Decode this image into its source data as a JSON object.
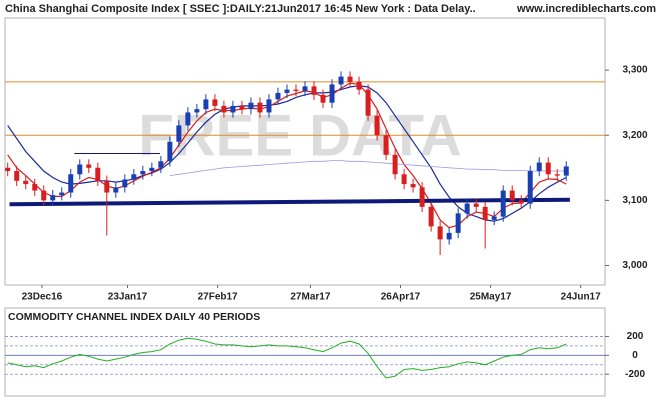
{
  "chart_data": [
    {
      "type": "candlestick",
      "title": "China Shanghai Composite Index [ SSEC ]:DAILY:21Jun2017 16:45 New York : Data Delay..",
      "source": "www.incrediblecharts.com",
      "watermark": "FREE DATA",
      "x": [
        0,
        1,
        2,
        3,
        4,
        5,
        6,
        7,
        8,
        9,
        10,
        11,
        12,
        13,
        14,
        15,
        16,
        17,
        18,
        19,
        20,
        21,
        22,
        23,
        24,
        25,
        26,
        27,
        28,
        29,
        30,
        31,
        32,
        33,
        34,
        35,
        36,
        37,
        38,
        39,
        40,
        41,
        42,
        43,
        44,
        45,
        46,
        47,
        48,
        49,
        50,
        51,
        52,
        53,
        54,
        55,
        56,
        57,
        58,
        59,
        60,
        61,
        62
      ],
      "open": [
        3150,
        3145,
        3130,
        3125,
        3115,
        3100,
        3108,
        3112,
        3140,
        3155,
        3150,
        3130,
        3112,
        3120,
        3132,
        3140,
        3145,
        3150,
        3160,
        3190,
        3215,
        3235,
        3240,
        3255,
        3245,
        3235,
        3245,
        3240,
        3250,
        3235,
        3255,
        3265,
        3270,
        3268,
        3275,
        3262,
        3250,
        3278,
        3290,
        3282,
        3270,
        3230,
        3200,
        3170,
        3140,
        3125,
        3120,
        3090,
        3060,
        3040,
        3050,
        3080,
        3095,
        3090,
        3070,
        3075,
        3115,
        3100,
        3095,
        3145,
        3158,
        3140,
        3138
      ],
      "high": [
        3158,
        3153,
        3138,
        3133,
        3123,
        3116,
        3120,
        3148,
        3163,
        3163,
        3158,
        3138,
        3128,
        3140,
        3148,
        3153,
        3158,
        3168,
        3198,
        3223,
        3243,
        3248,
        3263,
        3263,
        3253,
        3253,
        3253,
        3258,
        3258,
        3263,
        3273,
        3278,
        3278,
        3283,
        3283,
        3270,
        3286,
        3298,
        3298,
        3290,
        3278,
        3238,
        3208,
        3178,
        3148,
        3133,
        3128,
        3098,
        3068,
        3058,
        3088,
        3103,
        3103,
        3098,
        3083,
        3123,
        3123,
        3108,
        3153,
        3166,
        3166,
        3148,
        3160
      ],
      "low": [
        3137,
        3122,
        3117,
        3107,
        3092,
        3092,
        3100,
        3104,
        3132,
        3142,
        3122,
        3046,
        3104,
        3112,
        3124,
        3132,
        3137,
        3142,
        3152,
        3182,
        3207,
        3227,
        3232,
        3237,
        3227,
        3227,
        3232,
        3232,
        3227,
        3227,
        3247,
        3257,
        3260,
        3260,
        3254,
        3242,
        3242,
        3270,
        3274,
        3262,
        3222,
        3192,
        3162,
        3132,
        3117,
        3112,
        3082,
        3052,
        3016,
        3032,
        3042,
        3072,
        3082,
        3026,
        3062,
        3067,
        3092,
        3087,
        3087,
        3137,
        3132,
        3130,
        3130
      ],
      "close": [
        3145,
        3130,
        3125,
        3115,
        3100,
        3108,
        3112,
        3140,
        3155,
        3150,
        3130,
        3112,
        3120,
        3132,
        3140,
        3145,
        3150,
        3160,
        3190,
        3215,
        3235,
        3240,
        3255,
        3245,
        3235,
        3245,
        3240,
        3250,
        3235,
        3255,
        3265,
        3270,
        3268,
        3275,
        3262,
        3250,
        3278,
        3290,
        3282,
        3270,
        3230,
        3200,
        3170,
        3140,
        3125,
        3120,
        3090,
        3060,
        3040,
        3050,
        3080,
        3095,
        3090,
        3070,
        3075,
        3115,
        3100,
        3095,
        3145,
        3158,
        3140,
        3138,
        3152
      ],
      "up_color": "#1a3fb0",
      "down_color": "#d81e1e",
      "lines": [
        {
          "color": "#1a2a9c",
          "width": 1.2,
          "values": [
            3215,
            3195,
            3175,
            3160,
            3145,
            3135,
            3128,
            3125,
            3126,
            3128,
            3130,
            3130,
            3128,
            3130,
            3133,
            3138,
            3142,
            3148,
            3158,
            3172,
            3188,
            3205,
            3220,
            3232,
            3240,
            3243,
            3245,
            3245,
            3245,
            3246,
            3248,
            3252,
            3258,
            3262,
            3265,
            3265,
            3266,
            3270,
            3274,
            3276,
            3274,
            3265,
            3250,
            3230,
            3210,
            3190,
            3170,
            3150,
            3125,
            3105,
            3090,
            3080,
            3075,
            3070,
            3068,
            3072,
            3080,
            3088,
            3098,
            3110,
            3120,
            3128,
            3135
          ]
        },
        {
          "color": "#d81e1e",
          "width": 1.2,
          "values": [
            3170,
            3150,
            3138,
            3125,
            3112,
            3106,
            3106,
            3115,
            3128,
            3135,
            3132,
            3122,
            3118,
            3122,
            3130,
            3137,
            3143,
            3150,
            3165,
            3185,
            3205,
            3222,
            3235,
            3240,
            3238,
            3238,
            3240,
            3242,
            3240,
            3244,
            3252,
            3260,
            3264,
            3268,
            3266,
            3258,
            3262,
            3272,
            3280,
            3278,
            3262,
            3240,
            3210,
            3180,
            3155,
            3138,
            3118,
            3095,
            3070,
            3058,
            3062,
            3075,
            3082,
            3080,
            3075,
            3088,
            3095,
            3096,
            3112,
            3128,
            3133,
            3132,
            3125
          ]
        },
        {
          "color": "#9a9ae0",
          "width": 0.8,
          "values": [
            null,
            null,
            null,
            null,
            null,
            null,
            null,
            null,
            null,
            null,
            null,
            null,
            null,
            null,
            null,
            null,
            null,
            null,
            3138,
            3140,
            3142,
            3144,
            3146,
            3148,
            3150,
            3151,
            3152,
            3153,
            3154,
            3155,
            3156,
            3157,
            3158,
            3159,
            3160,
            3160,
            3161,
            3161,
            3160,
            3160,
            3159,
            3158,
            3157,
            3156,
            3155,
            3154,
            3153,
            3152,
            3151,
            3150,
            3149,
            3148,
            3148,
            3147,
            3147,
            3146,
            3146,
            3146,
            3145,
            3145,
            3145,
            3145,
            3145
          ]
        }
      ],
      "hlines": [
        {
          "value": 3282,
          "color": "#e08a2a"
        },
        {
          "value": 3200,
          "color": "#e08a2a"
        }
      ],
      "trendlines": [
        {
          "color": "#0d1a7a",
          "width": 4,
          "x": [
            0.2,
            62.4
          ],
          "y": [
            3094,
            3101
          ]
        },
        {
          "color": "#0d1a7a",
          "width": 1,
          "x": [
            7.4,
            16.9
          ],
          "y": [
            3172,
            3172
          ]
        }
      ],
      "xlim": [
        -0.3,
        66.3
      ],
      "xticks": [
        {
          "value": 3.8,
          "label": "23Dec16"
        },
        {
          "value": 13.3,
          "label": "23Jan17"
        },
        {
          "value": 23.3,
          "label": "27Feb17"
        },
        {
          "value": 33.6,
          "label": "27Mar17"
        },
        {
          "value": 43.6,
          "label": "26Apr17"
        },
        {
          "value": 53.6,
          "label": "25May17"
        },
        {
          "value": 63.6,
          "label": "24Jun17"
        }
      ],
      "ylim": [
        2970,
        3380
      ],
      "yticks": [
        {
          "value": 3000,
          "label": "3,000"
        },
        {
          "value": 3100,
          "label": "3,100"
        },
        {
          "value": 3200,
          "label": "3,200"
        },
        {
          "value": 3300,
          "label": "3,300"
        }
      ],
      "grid": false
    },
    {
      "type": "line",
      "title": "COMMODITY CHANNEL INDEX DAILY 40 PERIODS",
      "x": [
        0,
        1,
        2,
        3,
        4,
        5,
        6,
        7,
        8,
        9,
        10,
        11,
        12,
        13,
        14,
        15,
        16,
        17,
        18,
        19,
        20,
        21,
        22,
        23,
        24,
        25,
        26,
        27,
        28,
        29,
        30,
        31,
        32,
        33,
        34,
        35,
        36,
        37,
        38,
        39,
        40,
        41,
        42,
        43,
        44,
        45,
        46,
        47,
        48,
        49,
        50,
        51,
        52,
        53,
        54,
        55,
        56,
        57,
        58,
        59,
        60,
        61,
        62
      ],
      "series": [
        {
          "color": "#22b022",
          "values": [
            -80,
            -100,
            -120,
            -110,
            -130,
            -90,
            -60,
            -20,
            10,
            -10,
            -40,
            -60,
            -40,
            -20,
            10,
            30,
            40,
            60,
            120,
            160,
            180,
            170,
            150,
            120,
            110,
            110,
            100,
            90,
            100,
            110,
            100,
            100,
            90,
            80,
            60,
            40,
            80,
            130,
            150,
            120,
            20,
            -120,
            -240,
            -220,
            -150,
            -140,
            -160,
            -150,
            -130,
            -120,
            -90,
            -70,
            -80,
            -100,
            -60,
            -20,
            0,
            10,
            60,
            80,
            70,
            80,
            120
          ]
        }
      ],
      "ref_lines": [
        100,
        -100
      ],
      "xlim": [
        -0.3,
        66.3
      ],
      "ylim": [
        -420,
        480
      ],
      "yticks": [
        -200,
        0,
        200
      ],
      "grid": true
    }
  ]
}
